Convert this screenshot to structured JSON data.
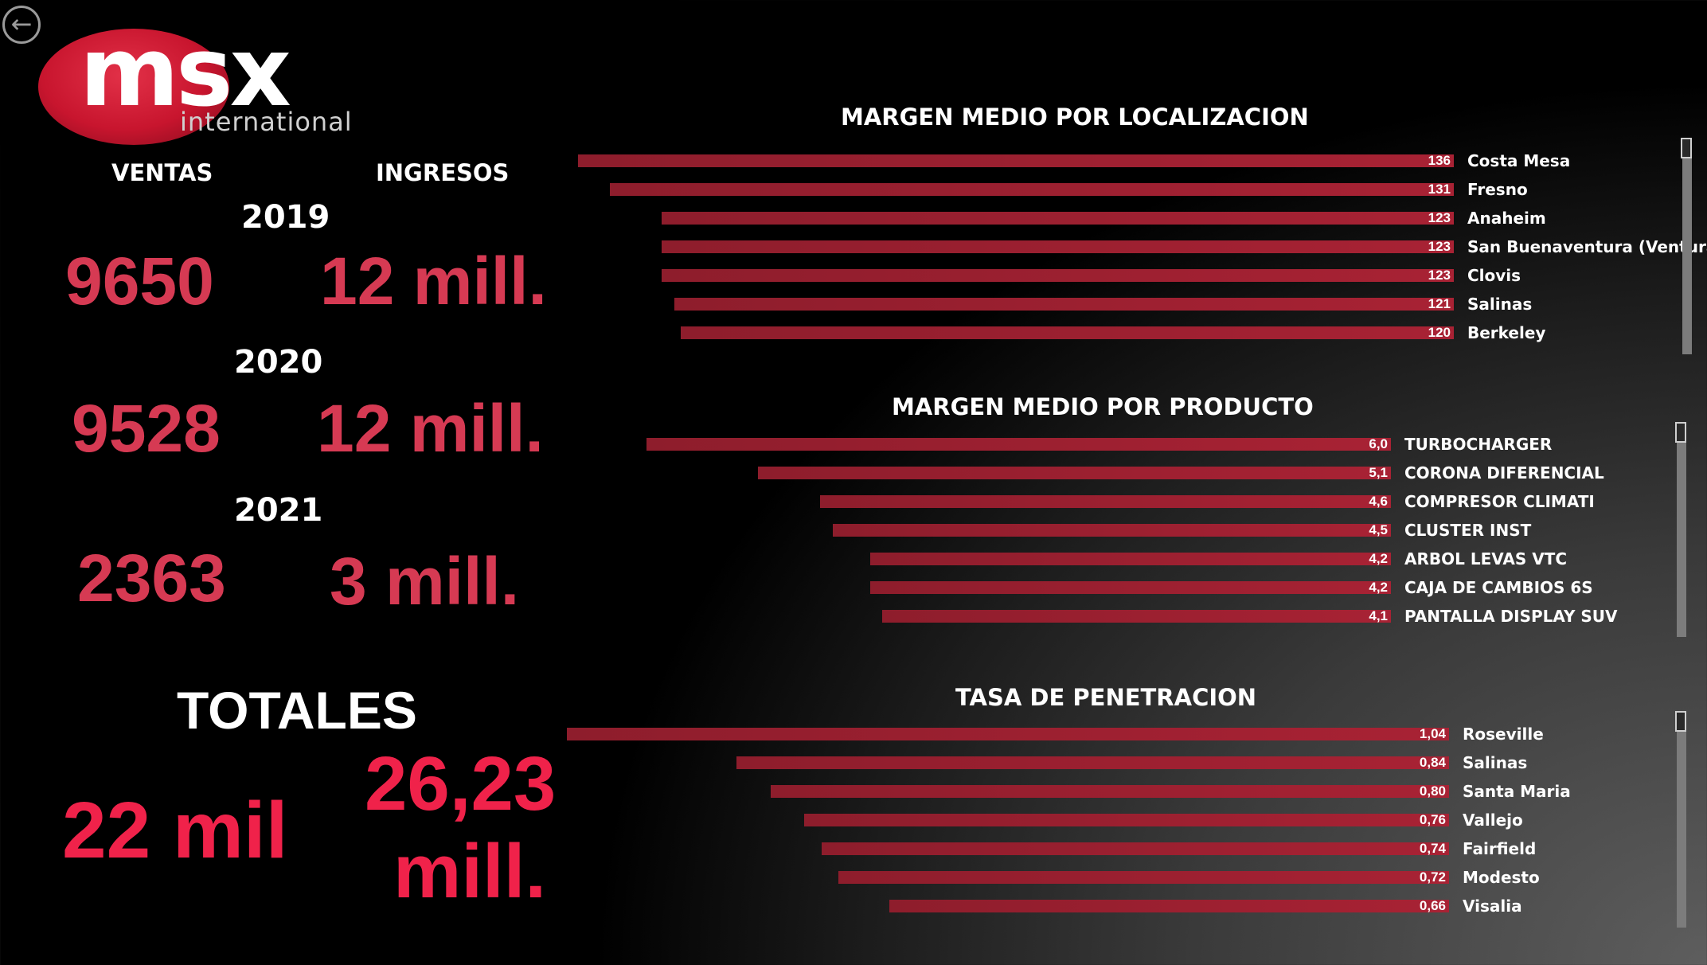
{
  "nav": {
    "back_icon": "arrow-left-circle-icon"
  },
  "logo": {
    "brand": "msx",
    "sub": "international"
  },
  "headers": {
    "ventas": "VENTAS",
    "ingresos": "INGRESOS"
  },
  "years": [
    {
      "year": "2019",
      "ventas": "9650",
      "ingresos": "12 mill."
    },
    {
      "year": "2020",
      "ventas": "9528",
      "ingresos": "12 mill."
    },
    {
      "year": "2021",
      "ventas": "2363",
      "ingresos": "3 mill."
    }
  ],
  "totales": {
    "label": "TOTALES",
    "ventas": "22 mil",
    "ingresos_line1": "26,23",
    "ingresos_line2": "mill."
  },
  "colors": {
    "accent": "#d63a53",
    "totals": "#f0224a",
    "bar": "#a82234"
  },
  "chart_data": [
    {
      "type": "bar",
      "orientation": "horizontal",
      "title": "MARGEN MEDIO POR LOCALIZACION",
      "categories": [
        "Costa Mesa",
        "Fresno",
        "Anaheim",
        "San Buenaventura (Ventura)",
        "Clovis",
        "Salinas",
        "Berkeley"
      ],
      "values": [
        136,
        131,
        123,
        123,
        123,
        121,
        120
      ],
      "labels": [
        "136",
        "131",
        "123",
        "123",
        "123",
        "121",
        "120"
      ]
    },
    {
      "type": "bar",
      "orientation": "horizontal",
      "title": "MARGEN MEDIO POR PRODUCTO",
      "categories": [
        "TURBOCHARGER",
        "CORONA DIFERENCIAL",
        "COMPRESOR CLIMATI",
        "CLUSTER INST",
        "ARBOL LEVAS VTC",
        "CAJA DE CAMBIOS 6S",
        "PANTALLA DISPLAY SUV"
      ],
      "values": [
        6.0,
        5.1,
        4.6,
        4.5,
        4.2,
        4.2,
        4.1
      ],
      "labels": [
        "6,0",
        "5,1",
        "4,6",
        "4,5",
        "4,2",
        "4,2",
        "4,1"
      ]
    },
    {
      "type": "bar",
      "orientation": "horizontal",
      "title": "TASA DE PENETRACION",
      "categories": [
        "Roseville",
        "Salinas",
        "Santa Maria",
        "Vallejo",
        "Fairfield",
        "Modesto",
        "Visalia"
      ],
      "values": [
        1.04,
        0.84,
        0.8,
        0.76,
        0.74,
        0.72,
        0.66
      ],
      "labels": [
        "1,04",
        "0,84",
        "0,80",
        "0,76",
        "0,74",
        "0,72",
        "0,66"
      ]
    }
  ]
}
